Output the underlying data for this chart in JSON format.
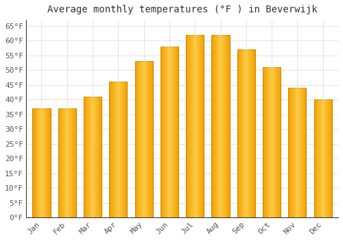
{
  "title": "Average monthly temperatures (°F ) in Beverwijk",
  "months": [
    "Jan",
    "Feb",
    "Mar",
    "Apr",
    "May",
    "Jun",
    "Jul",
    "Aug",
    "Sep",
    "Oct",
    "Nov",
    "Dec"
  ],
  "values": [
    37,
    37,
    41,
    46,
    53,
    58,
    62,
    62,
    57,
    51,
    44,
    40
  ],
  "bar_color_center": "#FFD040",
  "bar_color_edge": "#F5A000",
  "bar_edge_color": "#CC8800",
  "ylim": [
    0,
    67
  ],
  "yticks": [
    0,
    5,
    10,
    15,
    20,
    25,
    30,
    35,
    40,
    45,
    50,
    55,
    60,
    65
  ],
  "background_color": "#FFFFFF",
  "grid_color": "#DDDDDD",
  "title_fontsize": 10,
  "tick_fontsize": 8,
  "tick_color": "#555555",
  "title_color": "#333333",
  "spine_color": "#333333"
}
